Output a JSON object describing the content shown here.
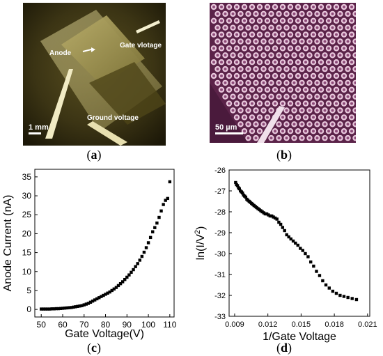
{
  "panels": {
    "a": {
      "caption": "a",
      "labels": {
        "anode": "Anode",
        "gate": "Gate vlotage",
        "ground": "Ground voltage",
        "scale": "1 mm"
      }
    },
    "b": {
      "caption": "b",
      "labels": {
        "scale": "50 µm"
      }
    },
    "c": {
      "caption": "c"
    },
    "d": {
      "caption": "d"
    }
  },
  "colors": {
    "photo_a_tint": "#3b3414",
    "photo_b_background": "#6b2d5a",
    "marker": "#000000"
  },
  "chart_data": [
    {
      "type": "scatter",
      "xlabel": "Gate Voltage(V)",
      "ylabel": "Anode Current (nA)",
      "xlim": [
        47,
        112
      ],
      "ylim": [
        -2,
        37
      ],
      "xticks": [
        50,
        60,
        70,
        80,
        90,
        100,
        110
      ],
      "yticks": [
        0,
        5,
        10,
        15,
        20,
        25,
        30,
        35
      ],
      "x": [
        50,
        51,
        52,
        53,
        54,
        55,
        56,
        57,
        58,
        59,
        60,
        61,
        62,
        63,
        64,
        65,
        66,
        67,
        68,
        69,
        70,
        71,
        72,
        73,
        74,
        75,
        76,
        77,
        78,
        79,
        80,
        81,
        82,
        83,
        84,
        85,
        86,
        87,
        88,
        89,
        90,
        91,
        92,
        93,
        94,
        95,
        96,
        97,
        98,
        99,
        100,
        101,
        102,
        103,
        104,
        105,
        106,
        107,
        108,
        109,
        110
      ],
      "y": [
        0.1,
        0.1,
        0.1,
        0.1,
        0.1,
        0.15,
        0.15,
        0.2,
        0.2,
        0.25,
        0.3,
        0.35,
        0.4,
        0.45,
        0.5,
        0.6,
        0.7,
        0.8,
        0.9,
        1.0,
        1.2,
        1.4,
        1.6,
        1.9,
        2.2,
        2.5,
        2.8,
        3.1,
        3.4,
        3.7,
        4.0,
        4.3,
        4.6,
        5.0,
        5.4,
        5.8,
        6.3,
        6.8,
        7.3,
        7.9,
        8.5,
        9.1,
        9.8,
        10.5,
        11.3,
        12.1,
        13.0,
        14.0,
        15.1,
        16.3,
        17.6,
        19.0,
        20.5,
        21.6,
        22.8,
        24.3,
        26.0,
        27.7,
        28.8,
        29.3,
        33.7
      ]
    },
    {
      "type": "scatter",
      "xlabel": "1/Gate Voltage",
      "ylabel_prefix": "ln",
      "ylabel_body": "I/V",
      "ylabel_sup": "2",
      "xlim": [
        0.0085,
        0.0212
      ],
      "ylim": [
        -33,
        -26
      ],
      "xticks": [
        "0.009",
        "0.012",
        "0.015",
        "0.018",
        "0.021"
      ],
      "yticks": [
        -26,
        -27,
        -28,
        -29,
        -30,
        -31,
        -32,
        -33
      ],
      "x": [
        0.00909,
        0.00917,
        0.00926,
        0.00935,
        0.00943,
        0.00952,
        0.00962,
        0.00971,
        0.0098,
        0.0099,
        0.01,
        0.0101,
        0.0102,
        0.01031,
        0.01042,
        0.01053,
        0.01064,
        0.01075,
        0.01087,
        0.01099,
        0.01111,
        0.01124,
        0.01136,
        0.01149,
        0.01163,
        0.01176,
        0.0119,
        0.01205,
        0.0122,
        0.01235,
        0.0125,
        0.01266,
        0.01282,
        0.01299,
        0.01316,
        0.01333,
        0.01351,
        0.0137,
        0.01389,
        0.01408,
        0.01429,
        0.01449,
        0.01471,
        0.01493,
        0.01515,
        0.01538,
        0.01563,
        0.01587,
        0.01613,
        0.01639,
        0.01667,
        0.01695,
        0.01724,
        0.01754,
        0.01786,
        0.01818,
        0.01852,
        0.01887,
        0.01923,
        0.01961,
        0.02
      ],
      "y": [
        -26.6,
        -26.7,
        -26.75,
        -26.85,
        -26.9,
        -27.0,
        -27.05,
        -27.1,
        -27.2,
        -27.25,
        -27.3,
        -27.4,
        -27.45,
        -27.5,
        -27.55,
        -27.6,
        -27.65,
        -27.7,
        -27.75,
        -27.8,
        -27.85,
        -27.9,
        -27.95,
        -28.0,
        -28.05,
        -28.1,
        -28.1,
        -28.15,
        -28.2,
        -28.2,
        -28.25,
        -28.3,
        -28.35,
        -28.5,
        -28.6,
        -28.75,
        -28.9,
        -29.1,
        -29.2,
        -29.3,
        -29.4,
        -29.5,
        -29.6,
        -29.75,
        -29.85,
        -30.0,
        -30.15,
        -30.4,
        -30.6,
        -30.85,
        -31.05,
        -31.3,
        -31.5,
        -31.65,
        -31.8,
        -31.9,
        -32.0,
        -32.05,
        -32.1,
        -32.15,
        -32.2
      ]
    }
  ]
}
